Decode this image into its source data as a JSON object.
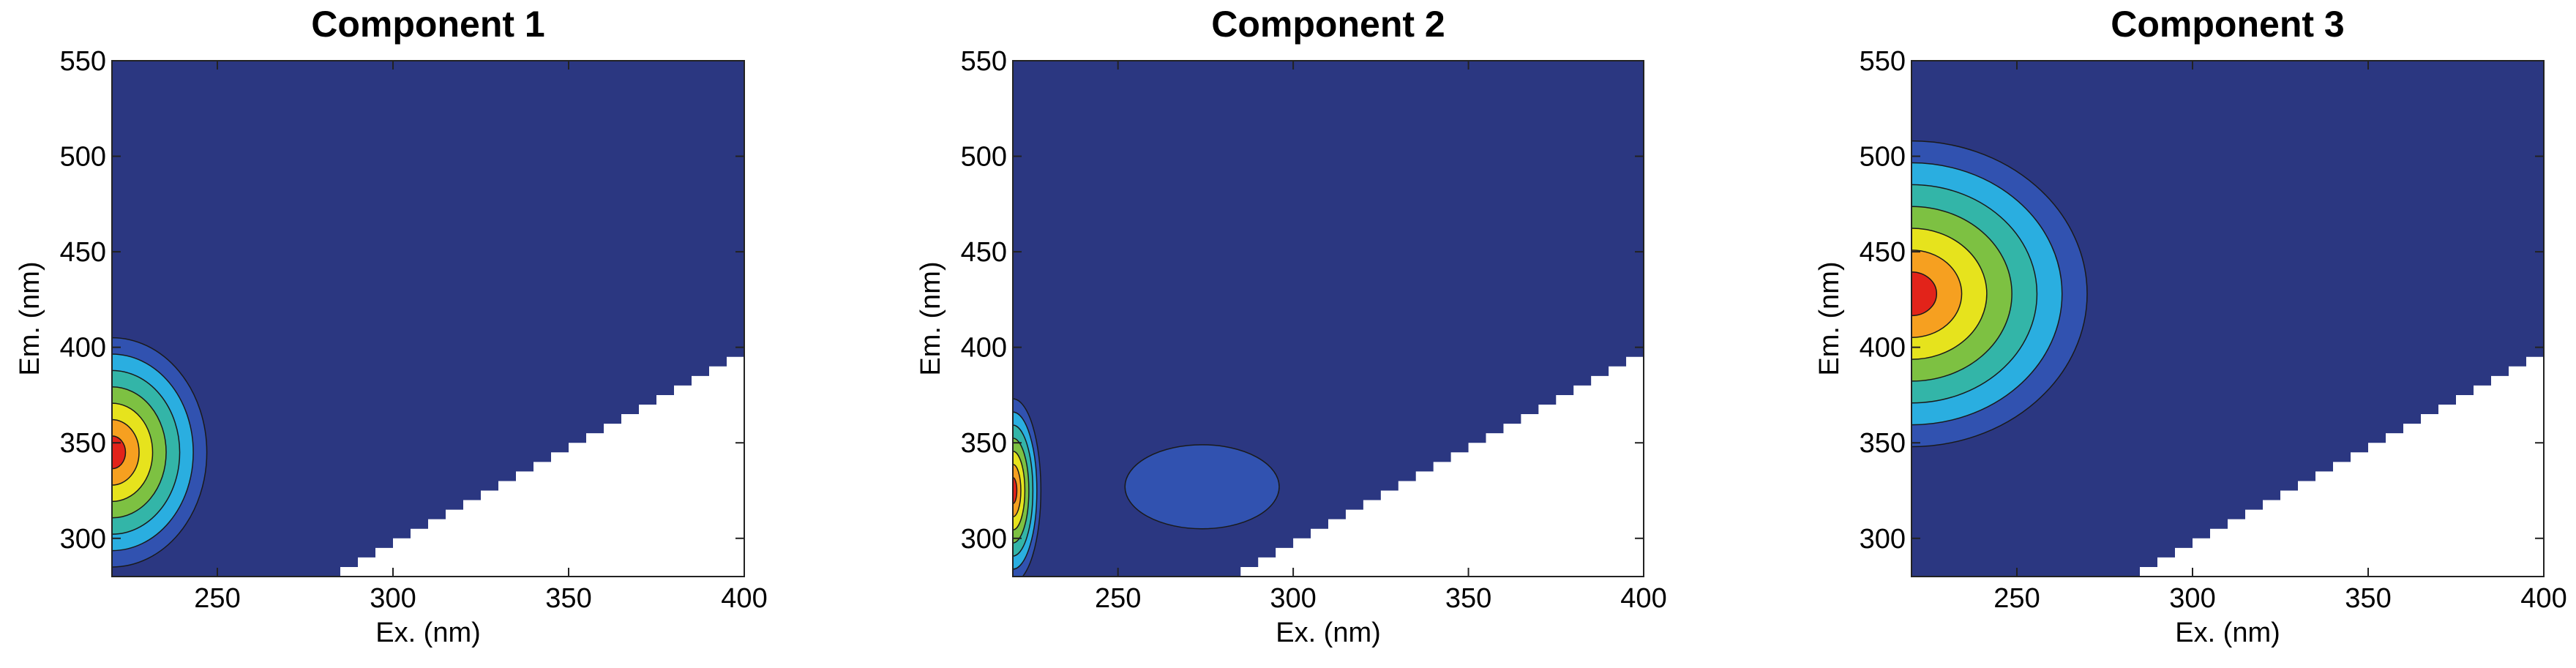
{
  "chart_data": [
    {
      "type": "contour",
      "title": "Component 1",
      "x_label": "Ex. (nm)",
      "y_label": "Em. (nm)",
      "xlim": [
        220,
        400
      ],
      "ylim": [
        280,
        550
      ],
      "xticks": [
        250,
        300,
        350,
        400
      ],
      "yticks": [
        300,
        350,
        400,
        450,
        500,
        550
      ],
      "colors": [
        "#2b3781",
        "#3152b0",
        "#2aaee0",
        "#33b5a8",
        "#7dc142",
        "#e6e31d",
        "#f6a020",
        "#e2231a"
      ],
      "peaks": [
        {
          "x": 220,
          "y": 345,
          "sx": 27,
          "sy": 60,
          "levels": 7
        }
      ]
    },
    {
      "type": "contour",
      "title": "Component 2",
      "x_label": "Ex. (nm)",
      "y_label": "Em. (nm)",
      "xlim": [
        220,
        400
      ],
      "ylim": [
        280,
        550
      ],
      "xticks": [
        250,
        300,
        350,
        400
      ],
      "yticks": [
        300,
        350,
        400,
        450,
        500,
        550
      ],
      "colors": [
        "#2b3781",
        "#3152b0",
        "#2aaee0",
        "#33b5a8",
        "#7dc142",
        "#e6e31d",
        "#f6a020",
        "#e2231a"
      ],
      "peaks": [
        {
          "x": 220,
          "y": 325,
          "sx": 8,
          "sy": 48,
          "levels": 7
        },
        {
          "x": 274,
          "y": 327,
          "sx": 22,
          "sy": 22,
          "levels": 1
        }
      ]
    },
    {
      "type": "contour",
      "title": "Component 3",
      "x_label": "Ex. (nm)",
      "y_label": "Em. (nm)",
      "xlim": [
        220,
        400
      ],
      "ylim": [
        280,
        550
      ],
      "xticks": [
        250,
        300,
        350,
        400
      ],
      "yticks": [
        300,
        350,
        400,
        450,
        500,
        550
      ],
      "colors": [
        "#2b3781",
        "#3152b0",
        "#2aaee0",
        "#33b5a8",
        "#7dc142",
        "#e6e31d",
        "#f6a020",
        "#e2231a"
      ],
      "peaks": [
        {
          "x": 220,
          "y": 428,
          "sx": 50,
          "sy": 80,
          "levels": 7
        }
      ]
    }
  ]
}
